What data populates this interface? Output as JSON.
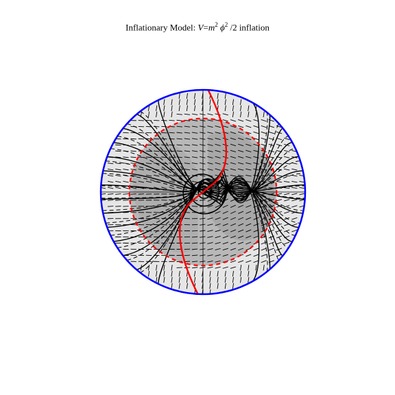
{
  "title": {
    "prefix": "Inflationary Model: ",
    "v": "V",
    "eq": "=",
    "m": "m",
    "m_exp": "2",
    "phi": "ϕ",
    "phi_exp": "2",
    "suffix": " /2 inflation"
  },
  "chart_data": {
    "type": "phase-portrait",
    "title": "Inflationary Model: V=m^2 ϕ^2 /2 inflation",
    "xlabel": "",
    "ylabel": "",
    "compactified_domain": "unit disk",
    "xlim": [
      -1,
      1
    ],
    "ylim": [
      -1,
      1
    ],
    "axes": "crosshair through origin",
    "grid": false,
    "legend": "none",
    "colors": {
      "boundary": "#0000ff",
      "critical_curve_solid": "#ff0000",
      "critical_curve_dashed": "#ff0000",
      "trajectories": "#000000",
      "direction_field": "#000000",
      "shade_outer": "#e6e6e6",
      "shade_inner": "#b8b8b8",
      "shade_deep": "#9a9a9a"
    },
    "inner_dashed_circle_radius": 0.72,
    "spiral_center": [
      0,
      0
    ],
    "solid_trajectory_count": 14,
    "dashed_trajectory_count": 14
  }
}
